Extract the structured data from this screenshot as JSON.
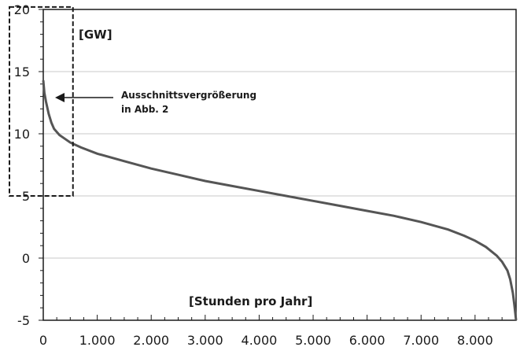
{
  "chart_data": {
    "type": "line",
    "y_unit_label": "[GW]",
    "x_unit_label": "[Stunden pro Jahr]",
    "xlim": [
      0,
      8760
    ],
    "ylim": [
      -5,
      20
    ],
    "x_ticks": [
      0,
      1000,
      2000,
      3000,
      4000,
      5000,
      6000,
      7000,
      8000
    ],
    "x_tick_labels": [
      "0",
      "1.000",
      "2.000",
      "3.000",
      "4.000",
      "5.000",
      "6.000",
      "7.000",
      "8.000"
    ],
    "y_ticks": [
      -5,
      0,
      5,
      10,
      15,
      20
    ],
    "y_tick_labels": [
      "-5",
      "0",
      "5",
      "10",
      "15",
      "20"
    ],
    "grid": true,
    "line_color": "#555555",
    "x": [
      0,
      20,
      50,
      100,
      150,
      200,
      300,
      400,
      500,
      700,
      1000,
      1500,
      2000,
      2500,
      3000,
      3500,
      4000,
      4500,
      5000,
      5500,
      6000,
      6500,
      7000,
      7500,
      7800,
      8000,
      8200,
      8400,
      8500,
      8600,
      8650,
      8700,
      8730,
      8760
    ],
    "y": [
      14.3,
      13.3,
      12.6,
      11.6,
      10.9,
      10.4,
      9.9,
      9.6,
      9.3,
      8.9,
      8.4,
      7.8,
      7.2,
      6.7,
      6.2,
      5.8,
      5.4,
      5.0,
      4.6,
      4.2,
      3.8,
      3.4,
      2.9,
      2.3,
      1.8,
      1.4,
      0.9,
      0.2,
      -0.3,
      -1.0,
      -1.7,
      -2.8,
      -3.8,
      -5.0
    ],
    "annotation": {
      "lines": [
        "Ausschnittsvergrößerung",
        "in Abb. 2"
      ],
      "highlight_x": [
        0,
        550
      ],
      "highlight_y": [
        5,
        20.2
      ]
    }
  }
}
